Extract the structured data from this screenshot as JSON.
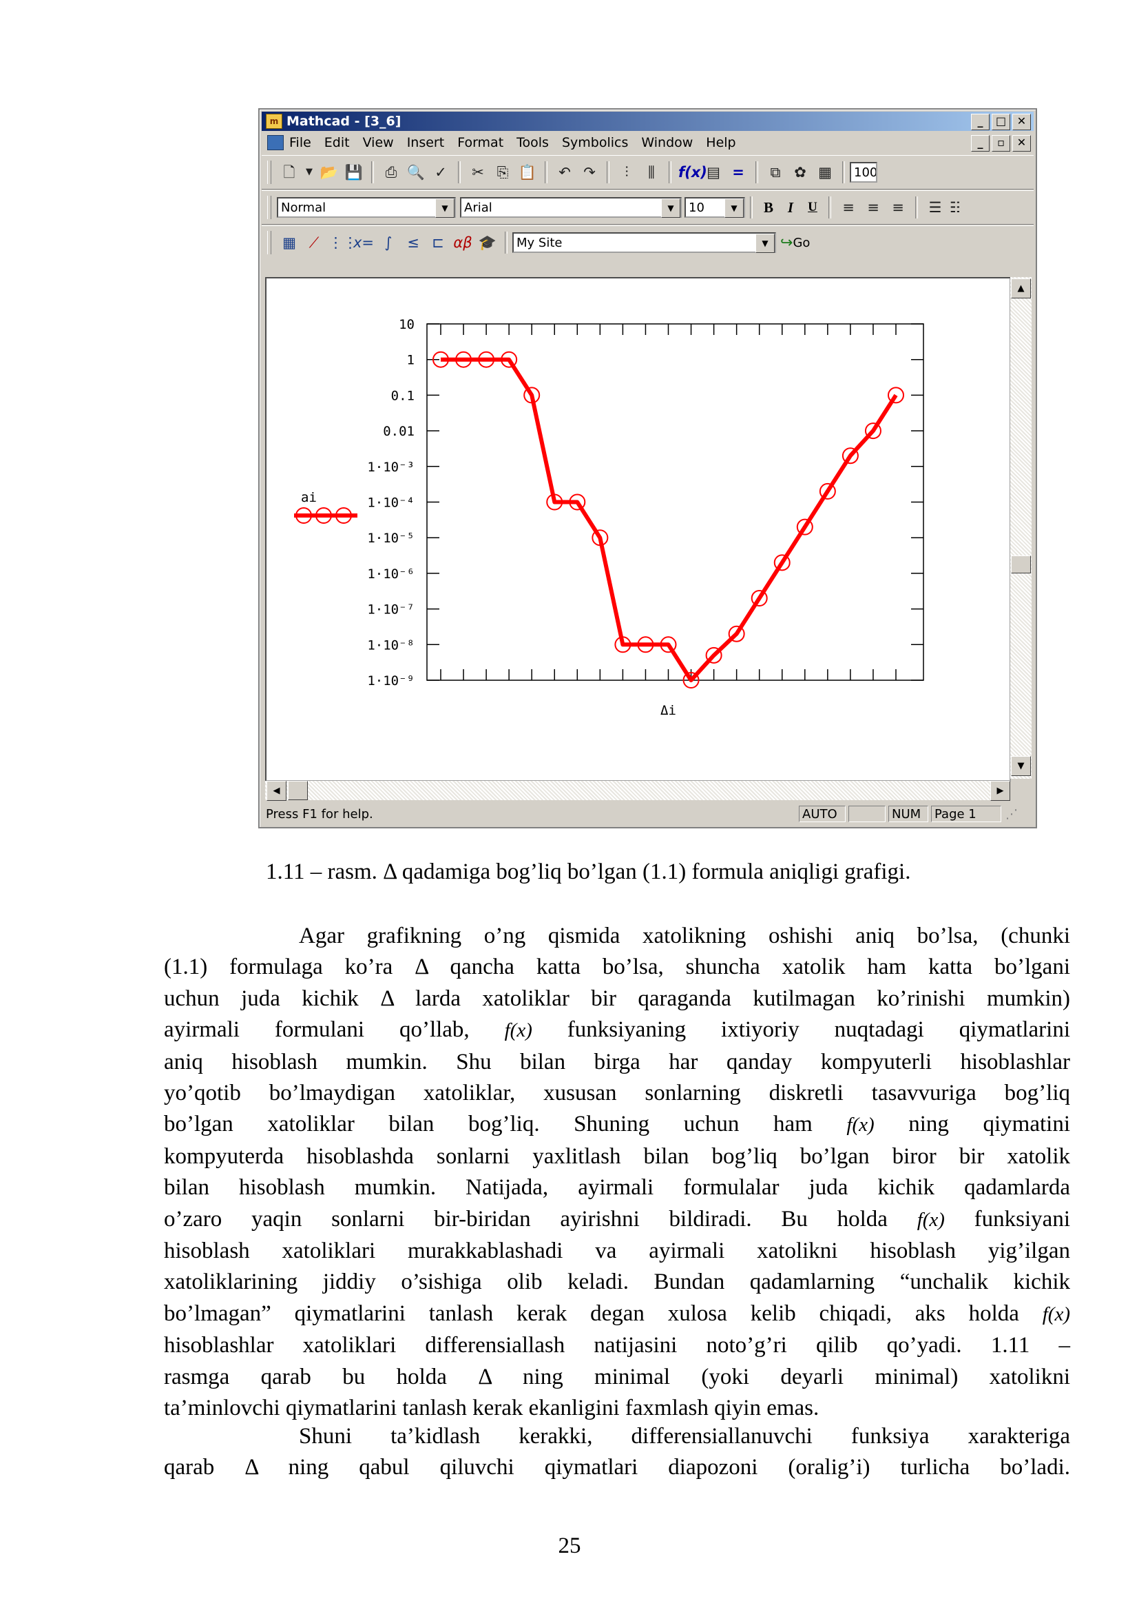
{
  "window": {
    "title": "Mathcad - [3_6]",
    "app_icon": "mathcad-icon",
    "menu": [
      "File",
      "Edit",
      "View",
      "Insert",
      "Format",
      "Tools",
      "Symbolics",
      "Window",
      "Help"
    ],
    "zoom": "100%",
    "style_combo": "Normal",
    "font_combo": "Arial",
    "size_combo": "10",
    "format_buttons": [
      "B",
      "I",
      "U"
    ],
    "url_combo": "My Site",
    "go_label": "Go",
    "status": {
      "help": "Press F1 for help.",
      "mode": "AUTO",
      "num": "NUM",
      "page": "Page 1"
    }
  },
  "chart_data": {
    "type": "line",
    "title": "",
    "xlabel": "Δi",
    "ylabel": "ai",
    "yscale": "log",
    "ylim": [
      1e-09,
      10
    ],
    "y_tick_labels": [
      "10",
      "1",
      "0.1",
      "0.01",
      "1·10⁻³",
      "1·10⁻⁴",
      "1·10⁻⁵",
      "1·10⁻⁶",
      "1·10⁻⁷",
      "1·10⁻⁸",
      "1·10⁻⁹"
    ],
    "legend": {
      "label": "ai",
      "placement": "left"
    },
    "series": [
      {
        "name": "ai",
        "color": "#ff0000",
        "marker": "circle",
        "values": [
          1,
          1,
          1,
          1,
          0.1,
          0.0001,
          0.0001,
          1e-05,
          1e-08,
          1e-08,
          1e-08,
          1e-09,
          5e-09,
          2e-08,
          2e-07,
          2e-06,
          2e-05,
          0.0002,
          0.002,
          0.01,
          0.1
        ]
      }
    ]
  },
  "caption": "1.11 – rasm. Δ qadamiga bog’liq bo’lgan (1.1) formula aniqligi grafigi.",
  "paragraph1": [
    "Agar grafikning o’ng qismida xatolikning oshishi aniq bo’lsa, (chunki",
    "(1.1) formulaga ko’ra Δ qancha katta bo’lsa, shuncha xatolik ham katta bo’lgani",
    "uchun juda kichik Δ larda xatoliklar bir qaraganda kutilmagan ko’rinishi mumkin)",
    [
      "ayirmali formulani qo’llab, ",
      "f(x)",
      " funksiyaning ixtiyoriy nuqtadagi qiymatlarini"
    ],
    "aniq hisoblash mumkin. Shu bilan birga har qanday kompyuterli hisoblashlar",
    "yo’qotib bo’lmaydigan xatoliklar, xususan sonlarning diskretli tasavvuriga bog’liq",
    [
      "bo’lgan xatoliklar bilan bog’liq. Shuning uchun ham ",
      "f(x)",
      " ning qiymatini"
    ],
    "kompyuterda hisoblashda sonlarni yaxlitlash bilan bog’liq bo’lgan biror bir xatolik",
    "bilan hisoblash mumkin. Natijada, ayirmali formulalar juda kichik qadamlarda",
    [
      "o’zaro yaqin sonlarni bir-biridan ayirishni bildiradi. Bu holda ",
      "f(x)",
      " funksiyani"
    ],
    "hisoblash xatoliklari murakkablashadi va ayirmali xatolikni hisoblash yig’ilgan",
    "xatoliklarining jiddiy o’sishiga olib keladi. Bundan qadamlarning “unchalik kichik",
    [
      "bo’lmagan” qiymatlarini tanlash kerak degan xulosa kelib chiqadi, aks holda ",
      "f(x)",
      ""
    ],
    "hisoblashlar xatoliklari differensiallash natijasini noto’g’ri qilib qo’yadi. 1.11 –",
    "rasmga qarab bu holda Δ ning minimal (yoki deyarli minimal) xatolikni",
    "ta’minlovchi qiymatlarini tanlash kerak ekanligini faxmlash qiyin emas."
  ],
  "paragraph2": [
    "Shuni ta’kidlash kerakki, differensiallanuvchi funksiya xarakteriga",
    "qarab Δ ning qabul qiluvchi qiymatlari diapozoni (oralig’i) turlicha bo’ladi."
  ],
  "page_number": "25"
}
